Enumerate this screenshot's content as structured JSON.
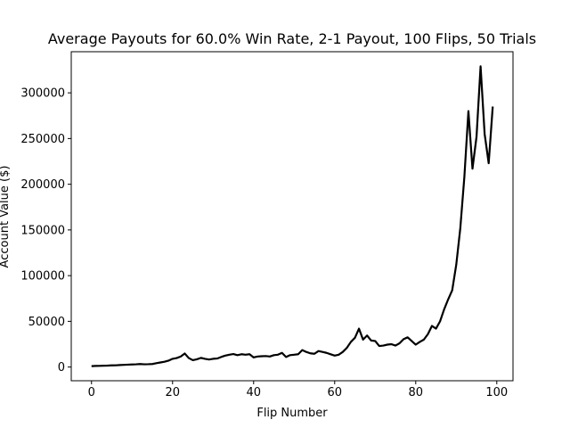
{
  "chart_data": {
    "type": "line",
    "title": "Average Payouts for 60.0% Win Rate, 2-1 Payout, 100 Flips, 50 Trials",
    "xlabel": "Flip Number",
    "ylabel": "Account Value ($)",
    "xlim": [
      -5,
      104
    ],
    "ylim": [
      -15000,
      345000
    ],
    "xticks": [
      0,
      20,
      40,
      60,
      80,
      100
    ],
    "yticks": [
      0,
      50000,
      100000,
      150000,
      200000,
      250000,
      300000
    ],
    "grid": false,
    "legend": "none",
    "series_color": "#000000",
    "series": [
      {
        "x": [
          0,
          1,
          2,
          3,
          4,
          5,
          6,
          7,
          8,
          9,
          10,
          11,
          12,
          13,
          14,
          15,
          16,
          17,
          18,
          19,
          20,
          21,
          22,
          23,
          24,
          25,
          26,
          27,
          28,
          29,
          30,
          31,
          32,
          33,
          34,
          35,
          36,
          37,
          38,
          39,
          40,
          41,
          42,
          43,
          44,
          45,
          46,
          47,
          48,
          49,
          50,
          51,
          52,
          53,
          54,
          55,
          56,
          57,
          58,
          59,
          60,
          61,
          62,
          63,
          64,
          65,
          66,
          67,
          68,
          69,
          70,
          71,
          72,
          73,
          74,
          75,
          76,
          77,
          78,
          79,
          80,
          81,
          82,
          83,
          84,
          85,
          86,
          87,
          88,
          89,
          90,
          91,
          92,
          93,
          94,
          95,
          96,
          97,
          98,
          99
        ],
        "values": [
          1000,
          1200,
          1300,
          1500,
          1600,
          1800,
          1900,
          2200,
          2400,
          2600,
          2800,
          3000,
          3300,
          3000,
          3100,
          3300,
          4200,
          5000,
          5800,
          7000,
          9000,
          9800,
          11500,
          14800,
          9800,
          7500,
          8500,
          10000,
          9000,
          8200,
          9000,
          9300,
          11000,
          12500,
          13500,
          14200,
          13000,
          14000,
          13500,
          14000,
          10500,
          11500,
          11800,
          12000,
          11500,
          13000,
          13500,
          15500,
          11000,
          13000,
          13500,
          14000,
          18500,
          16500,
          15000,
          14500,
          17500,
          16500,
          15500,
          14000,
          12500,
          13500,
          16500,
          21000,
          27500,
          32000,
          42000,
          30000,
          34500,
          29000,
          28500,
          23000,
          23500,
          24500,
          25000,
          23500,
          26000,
          30500,
          32500,
          28500,
          24500,
          27500,
          30000,
          36000,
          45000,
          42000,
          50000,
          63000,
          74000,
          84000,
          112000,
          152000,
          208000,
          280000,
          217000,
          252000,
          329000,
          255000,
          223000,
          285000
        ]
      }
    ]
  }
}
